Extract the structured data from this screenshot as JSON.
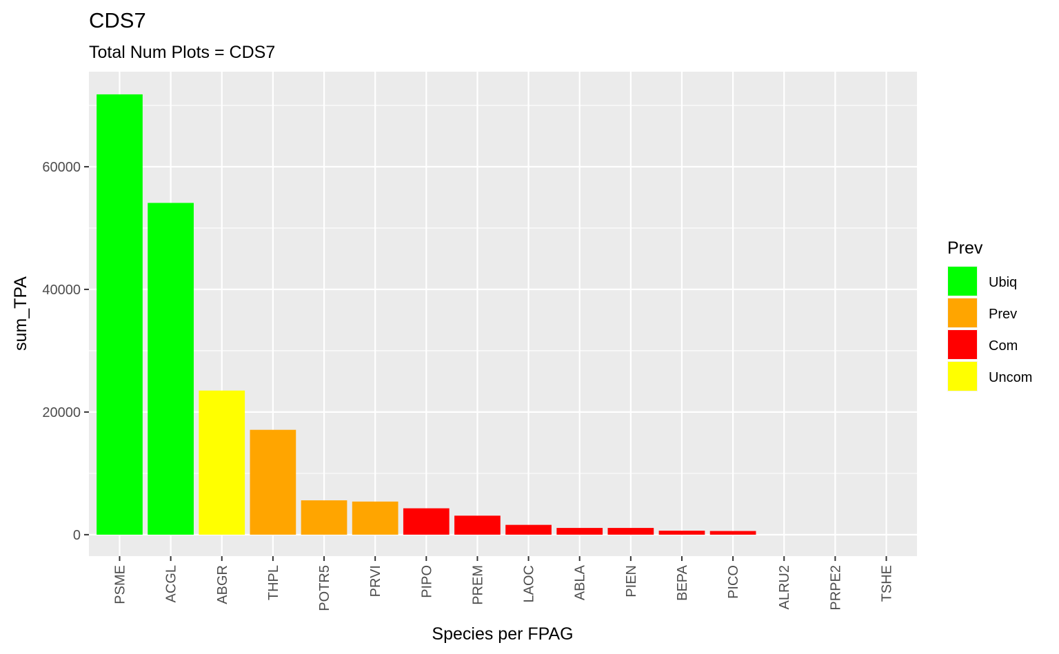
{
  "chart_data": {
    "type": "bar",
    "title": "CDS7",
    "subtitle": "Total Num Plots = CDS7",
    "xlabel": "Species per FPAG",
    "ylabel": "sum_TPA",
    "categories": [
      "PSME",
      "ACGL",
      "ABGR",
      "THPL",
      "POTR5",
      "PRVI",
      "PIPO",
      "PREM",
      "LAOC",
      "ABLA",
      "PIEN",
      "BEPA",
      "PICO",
      "ALRU2",
      "PRPE2",
      "TSHE"
    ],
    "values": [
      71800,
      54100,
      23500,
      17100,
      5600,
      5400,
      4300,
      3100,
      1600,
      1100,
      1100,
      650,
      600,
      0,
      0,
      0
    ],
    "groups": [
      "Ubiq",
      "Ubiq",
      "Uncom",
      "Prev",
      "Prev",
      "Prev",
      "Com",
      "Com",
      "Com",
      "Com",
      "Com",
      "Com",
      "Com",
      "Com",
      "Com",
      "Com"
    ],
    "ylim": [
      -3500,
      75500
    ],
    "yticks": [
      0,
      20000,
      40000,
      60000
    ],
    "ytick_labels": [
      "0",
      "20000",
      "40000",
      "60000"
    ],
    "grid": true,
    "legend": {
      "title": "Prev",
      "position": "right",
      "entries": [
        {
          "label": "Ubiq",
          "color": "#00ff00"
        },
        {
          "label": "Prev",
          "color": "#ffa500"
        },
        {
          "label": "Com",
          "color": "#ff0000"
        },
        {
          "label": "Uncom",
          "color": "#ffff00"
        }
      ]
    },
    "colors": {
      "panel_background": "#ebebeb",
      "grid_line": "#ffffff"
    }
  }
}
